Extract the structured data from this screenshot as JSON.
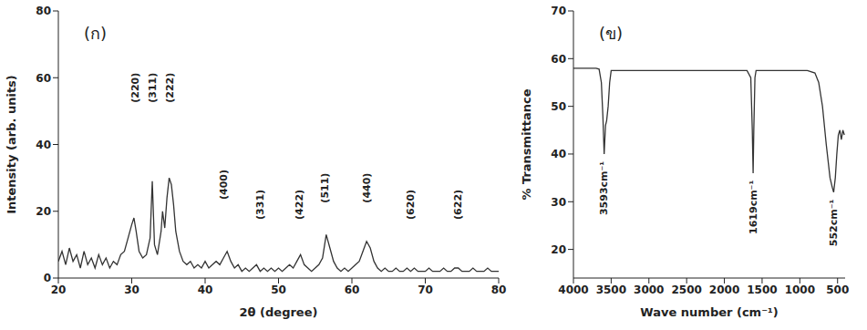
{
  "chart_data": [
    {
      "type": "line",
      "panel_label": "(ก)",
      "x_label": "2θ (degree)",
      "y_label": "Intensity (arb. units)",
      "color": "#333333",
      "xlim": [
        20,
        80
      ],
      "xticks": [
        20,
        30,
        40,
        50,
        60,
        70,
        80
      ],
      "ylim": [
        0,
        80
      ],
      "yticks": [
        0,
        20,
        40,
        60,
        80
      ],
      "x": [
        20,
        20.5,
        21,
        21.5,
        22,
        22.5,
        23,
        23.5,
        24,
        24.5,
        25,
        25.5,
        26,
        26.5,
        27,
        27.5,
        28,
        28.5,
        29,
        29.5,
        30,
        30.3,
        30.6,
        31,
        31.5,
        32,
        32.5,
        32.8,
        33.1,
        33.5,
        34,
        34.2,
        34.5,
        34.8,
        35.1,
        35.4,
        35.7,
        36,
        36.5,
        37,
        37.5,
        38,
        38.5,
        39,
        39.5,
        40,
        40.5,
        41,
        41.5,
        42,
        42.5,
        43,
        43.5,
        44,
        44.5,
        45,
        45.5,
        46,
        46.5,
        47,
        47.5,
        48,
        48.5,
        49,
        49.5,
        50,
        50.5,
        51,
        51.5,
        52,
        52.5,
        53,
        53.5,
        54,
        54.5,
        55,
        55.5,
        56,
        56.5,
        57,
        57.5,
        58,
        58.5,
        59,
        59.5,
        60,
        60.5,
        61,
        61.5,
        62,
        62.5,
        63,
        63.5,
        64,
        64.5,
        65,
        65.5,
        66,
        66.5,
        67,
        67.5,
        68,
        68.5,
        69,
        69.5,
        70,
        70.5,
        71,
        71.5,
        72,
        72.5,
        73,
        73.5,
        74,
        74.5,
        75,
        75.5,
        76,
        76.5,
        77,
        77.5,
        78,
        78.5,
        79,
        79.5,
        80
      ],
      "values": [
        5,
        8,
        4,
        9,
        5,
        7,
        3,
        8,
        4,
        6,
        3,
        7,
        4,
        6,
        3,
        5,
        4,
        7,
        8,
        12,
        16,
        18,
        14,
        8,
        6,
        7,
        12,
        29,
        10,
        7,
        14,
        20,
        15,
        24,
        30,
        28,
        22,
        14,
        8,
        5,
        4,
        5,
        3,
        4,
        3,
        5,
        3,
        4,
        5,
        4,
        6,
        8,
        5,
        3,
        4,
        2,
        3,
        2,
        3,
        4,
        2,
        3,
        2,
        3,
        2,
        3,
        2,
        3,
        4,
        3,
        5,
        7,
        4,
        3,
        2,
        3,
        4,
        6,
        13,
        9,
        5,
        3,
        2,
        3,
        2,
        3,
        4,
        5,
        8,
        11,
        9,
        5,
        3,
        2,
        3,
        2,
        2,
        3,
        2,
        2,
        3,
        2,
        3,
        2,
        2,
        2,
        3,
        2,
        2,
        2,
        3,
        2,
        2,
        3,
        3,
        2,
        2,
        2,
        3,
        2,
        2,
        2,
        3,
        2,
        2,
        2
      ],
      "annotations": [
        {
          "text": "(220)",
          "x": 30.5,
          "y": 57
        },
        {
          "text": "(311)",
          "x": 32.9,
          "y": 57
        },
        {
          "text": "(222)",
          "x": 35.2,
          "y": 57
        },
        {
          "text": "(400)",
          "x": 42.5,
          "y": 28
        },
        {
          "text": "(331)",
          "x": 47.5,
          "y": 22
        },
        {
          "text": "(422)",
          "x": 52.8,
          "y": 22
        },
        {
          "text": "(511)",
          "x": 56.3,
          "y": 27
        },
        {
          "text": "(440)",
          "x": 62,
          "y": 27
        },
        {
          "text": "(620)",
          "x": 68,
          "y": 22
        },
        {
          "text": "(622)",
          "x": 74.5,
          "y": 22
        }
      ]
    },
    {
      "type": "line",
      "panel_label": "(ข)",
      "x_label": "Wave number (cm⁻¹)",
      "y_label": "% Transmittance",
      "color": "#333333",
      "xlim": [
        4000,
        400
      ],
      "xticks": [
        4000,
        3500,
        3000,
        2500,
        2000,
        1500,
        1000,
        500
      ],
      "ylim": [
        14,
        70
      ],
      "yticks": [
        20,
        30,
        40,
        50,
        60,
        70
      ],
      "x": [
        4000,
        3900,
        3800,
        3700,
        3660,
        3630,
        3610,
        3593,
        3575,
        3560,
        3540,
        3520,
        3500,
        3400,
        3000,
        2500,
        2000,
        1700,
        1650,
        1630,
        1619,
        1610,
        1595,
        1580,
        1200,
        900,
        800,
        750,
        700,
        650,
        600,
        570,
        552,
        530,
        510,
        490,
        470,
        450,
        430,
        410
      ],
      "values": [
        58,
        58,
        58,
        58,
        57.8,
        55,
        48,
        40,
        46,
        47,
        50,
        55,
        57.5,
        57.5,
        57.5,
        57.5,
        57.5,
        57.5,
        56,
        45,
        36,
        45,
        56,
        57.5,
        57.5,
        57.5,
        57,
        55,
        50,
        42,
        35,
        33,
        32,
        35,
        40,
        44,
        45,
        43,
        45,
        44
      ],
      "annotations": [
        {
          "text": "3593cm⁻¹",
          "x": 3593,
          "y": 38.5
        },
        {
          "text": "1619cm⁻¹",
          "x": 1619,
          "y": 34.5
        },
        {
          "text": "552cm⁻¹",
          "x": 552,
          "y": 30.5
        }
      ]
    }
  ]
}
